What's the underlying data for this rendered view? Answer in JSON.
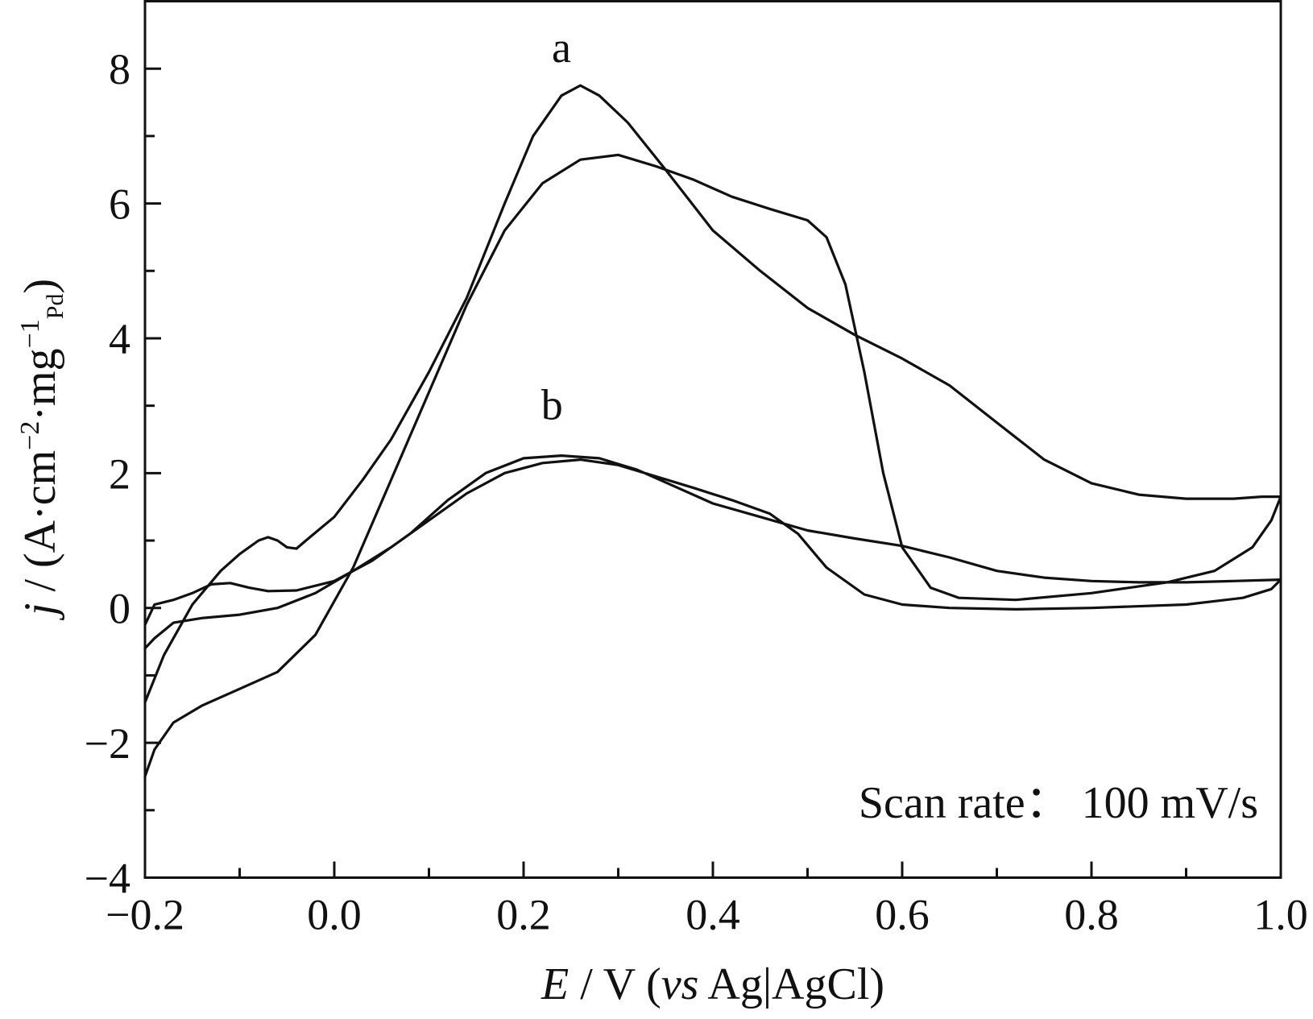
{
  "chart_data": {
    "type": "line",
    "title": "",
    "xlabel": {
      "italic": "E",
      "unit": " / V (",
      "vs": "vs",
      "ref": " Ag|AgCl)"
    },
    "ylabel": {
      "italic": "j",
      "text": " / (A·cm",
      "sup1": "−2",
      "mid": "·mg",
      "sup2": "−1",
      "sub": "Pd",
      "end": ")"
    },
    "xlim": [
      -0.2,
      1.0
    ],
    "ylim": [
      -4,
      9
    ],
    "x_ticks": [
      -0.2,
      -0.1,
      0.0,
      0.1,
      0.2,
      0.3,
      0.4,
      0.5,
      0.6,
      0.7,
      0.8,
      0.9,
      1.0
    ],
    "x_tick_labels": [
      {
        "value": -0.2,
        "text": "−0.2"
      },
      {
        "value": 0.0,
        "text": "0.0"
      },
      {
        "value": 0.2,
        "text": "0.2"
      },
      {
        "value": 0.4,
        "text": "0.4"
      },
      {
        "value": 0.6,
        "text": "0.6"
      },
      {
        "value": 0.8,
        "text": "0.8"
      },
      {
        "value": 1.0,
        "text": "1.0"
      }
    ],
    "y_ticks": [
      -4,
      -3,
      -2,
      -1,
      0,
      1,
      2,
      3,
      4,
      5,
      6,
      7,
      8
    ],
    "y_tick_labels": [
      {
        "value": -4,
        "text": "−4"
      },
      {
        "value": -2,
        "text": "−2"
      },
      {
        "value": 0,
        "text": "0"
      },
      {
        "value": 2,
        "text": "2"
      },
      {
        "value": 4,
        "text": "4"
      },
      {
        "value": 6,
        "text": "6"
      },
      {
        "value": 8,
        "text": "8"
      }
    ],
    "annotation": "Scan rate： 100 mV/s",
    "grid": false,
    "series": [
      {
        "label": "a",
        "label_at": {
          "x": 0.24,
          "y": 8.1
        },
        "forward": [
          [
            -0.2,
            -1.4
          ],
          [
            -0.18,
            -0.7
          ],
          [
            -0.15,
            0.05
          ],
          [
            -0.12,
            0.55
          ],
          [
            -0.1,
            0.8
          ],
          [
            -0.08,
            1.0
          ],
          [
            -0.07,
            1.05
          ],
          [
            -0.06,
            1.0
          ],
          [
            -0.05,
            0.9
          ],
          [
            -0.04,
            0.88
          ],
          [
            -0.03,
            1.0
          ],
          [
            0.0,
            1.35
          ],
          [
            0.03,
            1.9
          ],
          [
            0.06,
            2.5
          ],
          [
            0.1,
            3.5
          ],
          [
            0.14,
            4.6
          ],
          [
            0.18,
            6.0
          ],
          [
            0.21,
            7.0
          ],
          [
            0.24,
            7.6
          ],
          [
            0.26,
            7.75
          ],
          [
            0.28,
            7.6
          ],
          [
            0.31,
            7.2
          ],
          [
            0.35,
            6.5
          ],
          [
            0.4,
            5.6
          ],
          [
            0.45,
            5.0
          ],
          [
            0.5,
            4.45
          ],
          [
            0.55,
            4.05
          ],
          [
            0.6,
            3.7
          ],
          [
            0.65,
            3.3
          ],
          [
            0.7,
            2.75
          ],
          [
            0.75,
            2.2
          ],
          [
            0.8,
            1.85
          ],
          [
            0.85,
            1.68
          ],
          [
            0.9,
            1.62
          ],
          [
            0.95,
            1.62
          ],
          [
            0.98,
            1.65
          ],
          [
            1.0,
            1.65
          ]
        ],
        "reverse": [
          [
            1.0,
            1.65
          ],
          [
            0.99,
            1.3
          ],
          [
            0.97,
            0.9
          ],
          [
            0.93,
            0.55
          ],
          [
            0.88,
            0.38
          ],
          [
            0.8,
            0.22
          ],
          [
            0.72,
            0.12
          ],
          [
            0.66,
            0.15
          ],
          [
            0.63,
            0.3
          ],
          [
            0.6,
            0.9
          ],
          [
            0.58,
            2.0
          ],
          [
            0.56,
            3.5
          ],
          [
            0.54,
            4.8
          ],
          [
            0.52,
            5.5
          ],
          [
            0.5,
            5.75
          ],
          [
            0.46,
            5.92
          ],
          [
            0.42,
            6.1
          ],
          [
            0.38,
            6.35
          ],
          [
            0.34,
            6.55
          ],
          [
            0.3,
            6.72
          ],
          [
            0.26,
            6.65
          ],
          [
            0.22,
            6.3
          ],
          [
            0.18,
            5.6
          ],
          [
            0.14,
            4.5
          ],
          [
            0.1,
            3.2
          ],
          [
            0.06,
            1.9
          ],
          [
            0.02,
            0.6
          ],
          [
            -0.02,
            -0.4
          ],
          [
            -0.06,
            -0.95
          ],
          [
            -0.1,
            -1.2
          ],
          [
            -0.14,
            -1.45
          ],
          [
            -0.17,
            -1.7
          ],
          [
            -0.19,
            -2.1
          ],
          [
            -0.2,
            -2.5
          ]
        ]
      },
      {
        "label": "b",
        "label_at": {
          "x": 0.23,
          "y": 2.8
        },
        "forward": [
          [
            -0.2,
            -0.25
          ],
          [
            -0.19,
            0.05
          ],
          [
            -0.17,
            0.12
          ],
          [
            -0.15,
            0.22
          ],
          [
            -0.13,
            0.35
          ],
          [
            -0.11,
            0.37
          ],
          [
            -0.09,
            0.3
          ],
          [
            -0.07,
            0.25
          ],
          [
            -0.04,
            0.26
          ],
          [
            0.0,
            0.4
          ],
          [
            0.04,
            0.7
          ],
          [
            0.08,
            1.1
          ],
          [
            0.12,
            1.6
          ],
          [
            0.16,
            2.0
          ],
          [
            0.2,
            2.22
          ],
          [
            0.24,
            2.26
          ],
          [
            0.28,
            2.22
          ],
          [
            0.32,
            2.05
          ],
          [
            0.36,
            1.8
          ],
          [
            0.4,
            1.55
          ],
          [
            0.45,
            1.35
          ],
          [
            0.5,
            1.15
          ],
          [
            0.55,
            1.03
          ],
          [
            0.6,
            0.92
          ],
          [
            0.65,
            0.75
          ],
          [
            0.7,
            0.55
          ],
          [
            0.75,
            0.45
          ],
          [
            0.8,
            0.4
          ],
          [
            0.85,
            0.38
          ],
          [
            0.9,
            0.38
          ],
          [
            0.95,
            0.4
          ],
          [
            1.0,
            0.42
          ]
        ],
        "reverse": [
          [
            1.0,
            0.42
          ],
          [
            0.99,
            0.28
          ],
          [
            0.96,
            0.15
          ],
          [
            0.9,
            0.05
          ],
          [
            0.8,
            0.0
          ],
          [
            0.72,
            -0.02
          ],
          [
            0.65,
            0.0
          ],
          [
            0.6,
            0.05
          ],
          [
            0.56,
            0.2
          ],
          [
            0.52,
            0.6
          ],
          [
            0.49,
            1.1
          ],
          [
            0.46,
            1.4
          ],
          [
            0.42,
            1.6
          ],
          [
            0.38,
            1.78
          ],
          [
            0.34,
            1.95
          ],
          [
            0.3,
            2.12
          ],
          [
            0.26,
            2.2
          ],
          [
            0.22,
            2.15
          ],
          [
            0.18,
            2.0
          ],
          [
            0.14,
            1.7
          ],
          [
            0.1,
            1.3
          ],
          [
            0.06,
            0.9
          ],
          [
            0.02,
            0.55
          ],
          [
            -0.02,
            0.22
          ],
          [
            -0.06,
            0.0
          ],
          [
            -0.1,
            -0.1
          ],
          [
            -0.14,
            -0.15
          ],
          [
            -0.17,
            -0.22
          ],
          [
            -0.19,
            -0.45
          ],
          [
            -0.2,
            -0.6
          ]
        ]
      }
    ]
  }
}
